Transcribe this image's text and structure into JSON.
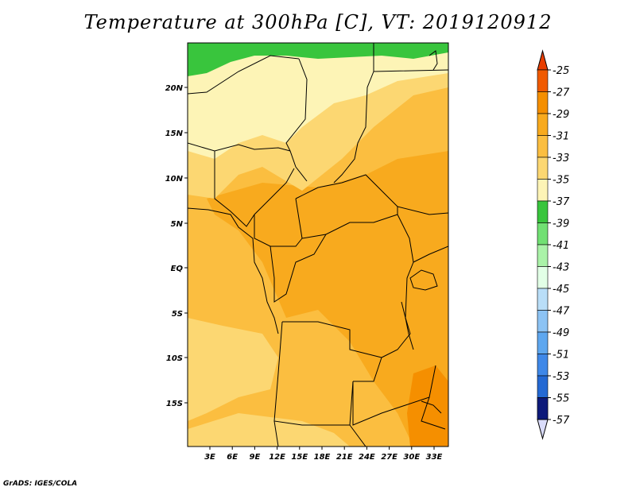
{
  "title": "Temperature at 300hPa [C], VT: 2019120912",
  "credit": "GrADS: IGES/COLA",
  "map": {
    "lat_labels": [
      "20N",
      "15N",
      "10N",
      "5N",
      "EQ",
      "5S",
      "10S",
      "15S"
    ],
    "lon_labels": [
      "3E",
      "6E",
      "9E",
      "12E",
      "15E",
      "18E",
      "21E",
      "24E",
      "27E",
      "30E",
      "33E"
    ]
  },
  "colorbar": {
    "labels": [
      "-25",
      "-27",
      "-29",
      "-31",
      "-33",
      "-35",
      "-37",
      "-39",
      "-41",
      "-43",
      "-45",
      "-47",
      "-49",
      "-51",
      "-53",
      "-55",
      "-57"
    ],
    "colors": [
      "#f05a00",
      "#f58f00",
      "#f8aa1e",
      "#fbbe40",
      "#fcd772",
      "#fdf4b6",
      "#39c53d",
      "#71e073",
      "#aaf2a8",
      "#e2ffe6",
      "#b9def8",
      "#8cc3f4",
      "#5ea7ef",
      "#3f88e8",
      "#2469d3",
      "#1850b7",
      "#0d1a7a"
    ],
    "top_color": "#e83e00",
    "bottom_color": "#dadcfb"
  }
}
